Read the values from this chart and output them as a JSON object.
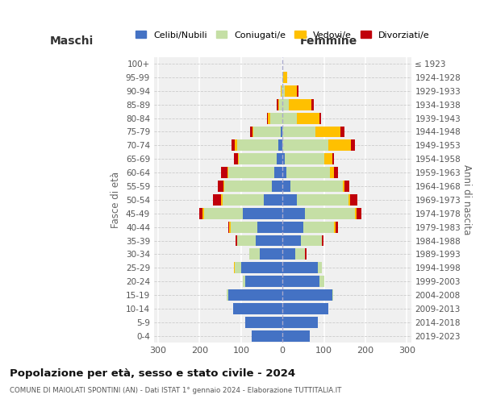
{
  "age_groups": [
    "0-4",
    "5-9",
    "10-14",
    "15-19",
    "20-24",
    "25-29",
    "30-34",
    "35-39",
    "40-44",
    "45-49",
    "50-54",
    "55-59",
    "60-64",
    "65-69",
    "70-74",
    "75-79",
    "80-84",
    "85-89",
    "90-94",
    "95-99",
    "100+"
  ],
  "birth_years": [
    "2019-2023",
    "2014-2018",
    "2009-2013",
    "2004-2008",
    "1999-2003",
    "1994-1998",
    "1989-1993",
    "1984-1988",
    "1979-1983",
    "1974-1978",
    "1969-1973",
    "1964-1968",
    "1959-1963",
    "1954-1958",
    "1949-1953",
    "1944-1948",
    "1939-1943",
    "1934-1938",
    "1929-1933",
    "1924-1928",
    "≤ 1923"
  ],
  "maschi": {
    "celibi": [
      75,
      90,
      120,
      130,
      90,
      100,
      55,
      65,
      60,
      95,
      45,
      25,
      20,
      15,
      10,
      5,
      0,
      0,
      0,
      0,
      0
    ],
    "coniugati": [
      0,
      0,
      0,
      5,
      5,
      15,
      25,
      45,
      65,
      95,
      100,
      115,
      110,
      90,
      100,
      65,
      30,
      8,
      2,
      0,
      0
    ],
    "vedovi": [
      0,
      0,
      0,
      0,
      0,
      3,
      0,
      0,
      3,
      3,
      3,
      3,
      3,
      3,
      5,
      3,
      5,
      3,
      3,
      0,
      0
    ],
    "divorziati": [
      0,
      0,
      0,
      0,
      0,
      0,
      0,
      3,
      3,
      8,
      20,
      13,
      15,
      10,
      8,
      5,
      3,
      3,
      0,
      0,
      0
    ]
  },
  "femmine": {
    "nubili": [
      65,
      85,
      110,
      120,
      90,
      85,
      30,
      45,
      50,
      55,
      35,
      20,
      10,
      5,
      0,
      0,
      0,
      0,
      0,
      0,
      0
    ],
    "coniugate": [
      0,
      0,
      0,
      3,
      10,
      10,
      25,
      50,
      75,
      120,
      125,
      125,
      105,
      95,
      110,
      80,
      35,
      15,
      5,
      2,
      0
    ],
    "vedove": [
      0,
      0,
      0,
      0,
      0,
      0,
      0,
      0,
      3,
      3,
      3,
      5,
      10,
      20,
      55,
      60,
      55,
      55,
      30,
      10,
      0
    ],
    "divorziate": [
      0,
      0,
      0,
      0,
      0,
      0,
      3,
      3,
      5,
      13,
      18,
      12,
      8,
      5,
      10,
      10,
      3,
      5,
      3,
      0,
      0
    ]
  },
  "colors": {
    "celibi": "#4472c4",
    "coniugati": "#c5dfa5",
    "vedovi": "#ffc000",
    "divorziati": "#c0000b"
  },
  "xlim": 310,
  "title": "Popolazione per età, sesso e stato civile - 2024",
  "subtitle": "COMUNE DI MAIOLATI SPONTINI (AN) - Dati ISTAT 1° gennaio 2024 - Elaborazione TUTTITALIA.IT",
  "xlabel_left": "Maschi",
  "xlabel_right": "Femmine",
  "ylabel_left": "Fasce di età",
  "ylabel_right": "Anni di nascita",
  "legend_labels": [
    "Celibi/Nubili",
    "Coniugati/e",
    "Vedovi/e",
    "Divorziati/e"
  ],
  "bg_color": "#f0f0f0",
  "bar_height": 0.82
}
